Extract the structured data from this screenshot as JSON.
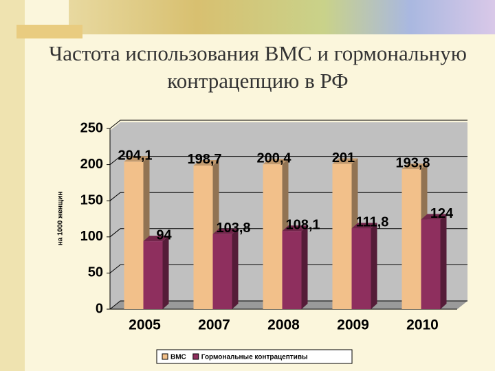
{
  "chart_data": {
    "type": "bar",
    "title": "Частота использования ВМС и гормональную контрацепцию в РФ",
    "y_label": "на 1000 женщин",
    "categories": [
      "2005",
      "2007",
      "2008",
      "2009",
      "2010"
    ],
    "series": [
      {
        "name": "ВМС",
        "color": "#f2c08a",
        "values": [
          204.1,
          198.7,
          200.4,
          201,
          193.8
        ],
        "value_labels": [
          "204,1",
          "198,7",
          "200,4",
          "201",
          "193,8"
        ]
      },
      {
        "name": "Гормональные контрацептивы",
        "color": "#8e2f5e",
        "values": [
          94,
          103.8,
          108.1,
          111.8,
          124
        ],
        "value_labels": [
          "94",
          "103,8",
          "108,1",
          "111,8",
          "124"
        ]
      }
    ],
    "ylim": [
      0,
      250
    ],
    "yticks": [
      0,
      50,
      100,
      150,
      200,
      250
    ],
    "grid": true
  }
}
